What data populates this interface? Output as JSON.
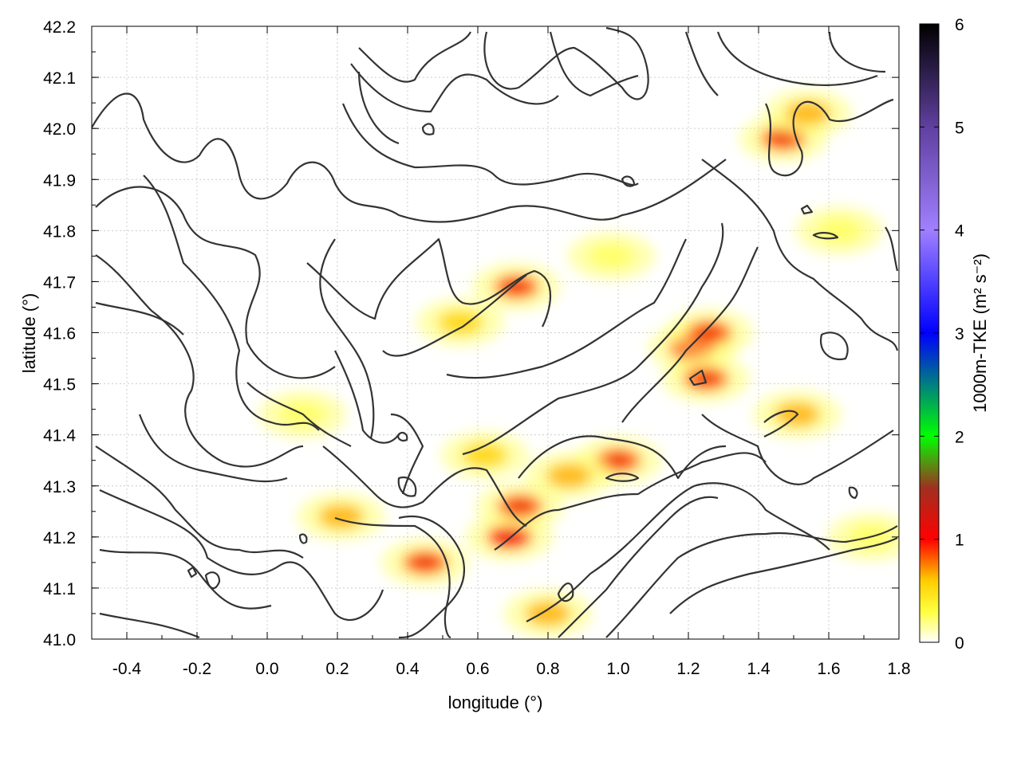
{
  "chart_data": {
    "type": "heatmap",
    "xlabel": "longitude (°)",
    "ylabel": "latitude (°)",
    "xlim": [
      -0.5,
      1.8
    ],
    "ylim": [
      41.0,
      42.2
    ],
    "xticks": [
      "-0.4",
      "-0.2",
      "0.0",
      "0.2",
      "0.4",
      "0.6",
      "0.8",
      "1.0",
      "1.2",
      "1.4",
      "1.6",
      "1.8"
    ],
    "yticks": [
      "41.0",
      "41.1",
      "41.2",
      "41.3",
      "41.4",
      "41.5",
      "41.6",
      "41.7",
      "41.8",
      "41.9",
      "42.0",
      "42.1",
      "42.2"
    ],
    "grid": true,
    "colorbar": {
      "label": "1000m-TKE (m² s⁻²)",
      "range": [
        0,
        6
      ],
      "ticks": [
        "0",
        "1",
        "2",
        "3",
        "4",
        "5",
        "6"
      ],
      "colors": [
        "#ffffff",
        "#ffff00",
        "#ff0000",
        "#00ff00",
        "#0000ff",
        "#a000ff",
        "#000000"
      ]
    },
    "hotspots": [
      {
        "lon": 0.55,
        "lat": 41.62,
        "value": 0.4
      },
      {
        "lon": 0.71,
        "lat": 41.69,
        "value": 0.7
      },
      {
        "lon": 1.21,
        "lat": 41.57,
        "value": 1.0
      },
      {
        "lon": 1.25,
        "lat": 41.51,
        "value": 0.7
      },
      {
        "lon": 1.26,
        "lat": 41.6,
        "value": 0.8
      },
      {
        "lon": 1.47,
        "lat": 41.98,
        "value": 0.7
      },
      {
        "lon": 1.54,
        "lat": 42.03,
        "value": 0.6
      },
      {
        "lon": 1.0,
        "lat": 41.35,
        "value": 0.9
      },
      {
        "lon": 0.86,
        "lat": 41.32,
        "value": 0.6
      },
      {
        "lon": 0.69,
        "lat": 41.2,
        "value": 1.0
      },
      {
        "lon": 0.72,
        "lat": 41.26,
        "value": 0.8
      },
      {
        "lon": 0.45,
        "lat": 41.15,
        "value": 0.9
      },
      {
        "lon": 0.21,
        "lat": 41.24,
        "value": 0.6
      },
      {
        "lon": 0.8,
        "lat": 41.05,
        "value": 0.5
      },
      {
        "lon": 1.72,
        "lat": 41.2,
        "value": 0.3
      },
      {
        "lon": 0.62,
        "lat": 41.36,
        "value": 0.4
      },
      {
        "lon": 0.1,
        "lat": 41.44,
        "value": 0.25
      },
      {
        "lon": 1.51,
        "lat": 41.44,
        "value": 0.5
      },
      {
        "lon": 1.63,
        "lat": 41.8,
        "value": 0.3
      },
      {
        "lon": 0.98,
        "lat": 41.75,
        "value": 0.2
      }
    ]
  }
}
